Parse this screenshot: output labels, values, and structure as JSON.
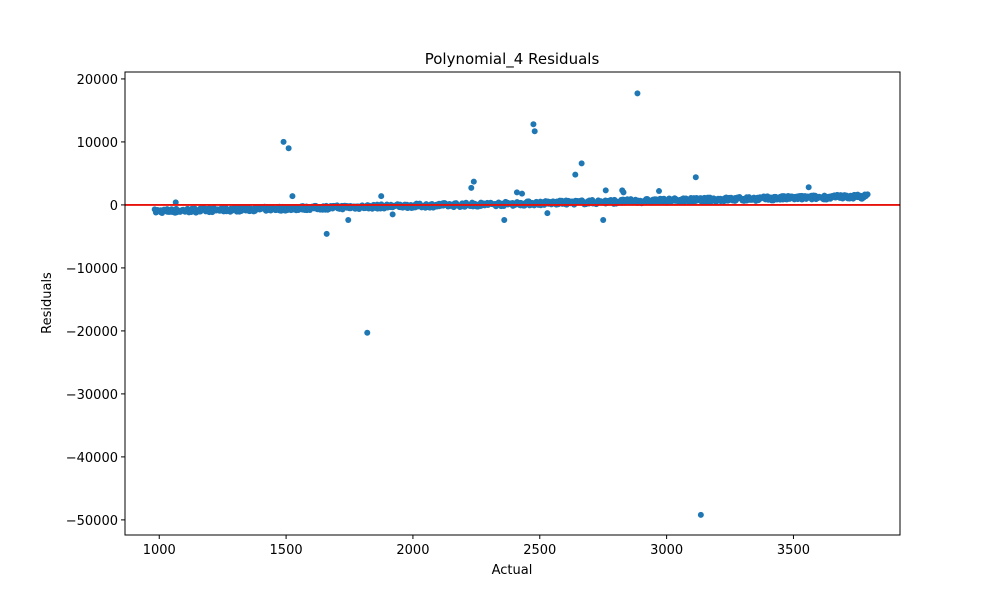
{
  "chart_data": {
    "type": "scatter",
    "title": "Polynomial_4 Residuals",
    "xlabel": "Actual",
    "ylabel": "Residuals",
    "xlim": [
      865,
      3920
    ],
    "ylim": [
      -52400,
      21100
    ],
    "x_ticks": [
      1000,
      1500,
      2000,
      2500,
      3000,
      3500
    ],
    "x_tick_labels": [
      "1000",
      "1500",
      "2000",
      "2500",
      "3000",
      "3500"
    ],
    "y_ticks": [
      20000,
      10000,
      0,
      -10000,
      -20000,
      -30000,
      -40000,
      -50000
    ],
    "y_tick_labels": [
      "20000",
      "10000",
      "0",
      "−10000",
      "−20000",
      "−30000",
      "−40000",
      "−50000"
    ],
    "reference_line": {
      "y": 0,
      "color": "#e8120c"
    },
    "marker_color": "#1f77b4",
    "grid": false,
    "legend": "none",
    "band": {
      "x_range": [
        985,
        3790
      ],
      "residual_at_start": -1000,
      "residual_at_end": 1350,
      "spread": 350,
      "point_count": 900
    },
    "outliers": [
      {
        "x": 1065,
        "y": 400
      },
      {
        "x": 1490,
        "y": 10000
      },
      {
        "x": 1510,
        "y": 9000
      },
      {
        "x": 1525,
        "y": 1400
      },
      {
        "x": 1660,
        "y": -4600
      },
      {
        "x": 1745,
        "y": -2400
      },
      {
        "x": 1820,
        "y": -20300
      },
      {
        "x": 1875,
        "y": 1400
      },
      {
        "x": 1920,
        "y": -1500
      },
      {
        "x": 2230,
        "y": 2700
      },
      {
        "x": 2240,
        "y": 3700
      },
      {
        "x": 2360,
        "y": -2400
      },
      {
        "x": 2410,
        "y": 2000
      },
      {
        "x": 2430,
        "y": 1800
      },
      {
        "x": 2475,
        "y": 12800
      },
      {
        "x": 2480,
        "y": 11700
      },
      {
        "x": 2530,
        "y": -1300
      },
      {
        "x": 2640,
        "y": 4800
      },
      {
        "x": 2665,
        "y": 6600
      },
      {
        "x": 2750,
        "y": -2400
      },
      {
        "x": 2760,
        "y": 2300
      },
      {
        "x": 2825,
        "y": 2300
      },
      {
        "x": 2830,
        "y": 2000
      },
      {
        "x": 2885,
        "y": 17700
      },
      {
        "x": 2970,
        "y": 2200
      },
      {
        "x": 3115,
        "y": 4400
      },
      {
        "x": 3135,
        "y": -49200
      },
      {
        "x": 3560,
        "y": 2800
      }
    ]
  }
}
